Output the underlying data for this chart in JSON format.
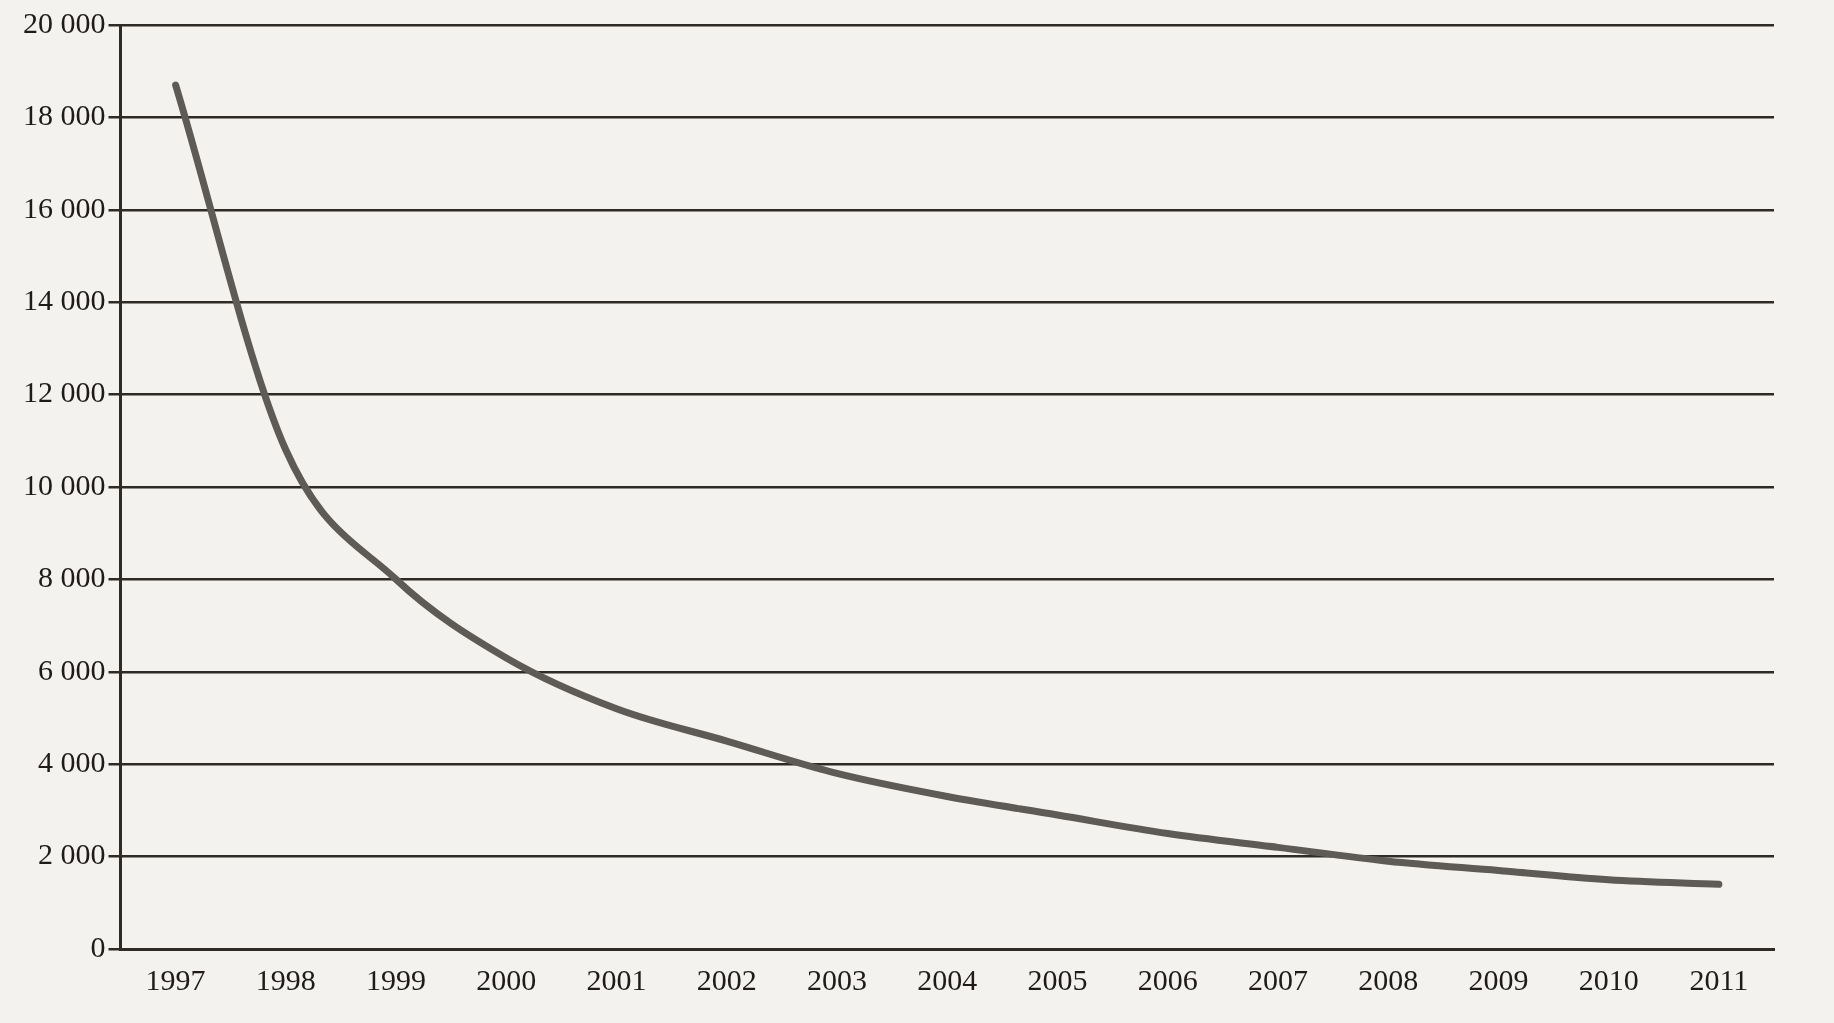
{
  "chart_data": {
    "type": "line",
    "categories": [
      "1997",
      "1998",
      "1999",
      "2000",
      "2001",
      "2002",
      "2003",
      "2004",
      "2005",
      "2006",
      "2007",
      "2008",
      "2009",
      "2010",
      "2011"
    ],
    "series": [
      {
        "color": "#5e5a55",
        "values": [
          18700,
          10800,
          8000,
          6300,
          5200,
          4500,
          3800,
          3300,
          2900,
          2500,
          2200,
          1900,
          1700,
          1500,
          1400
        ]
      }
    ],
    "ylim": [
      0,
      20000
    ],
    "yticks": [
      {
        "value": 0,
        "label": "0"
      },
      {
        "value": 2000,
        "label": "2 000"
      },
      {
        "value": 4000,
        "label": "4 000"
      },
      {
        "value": 6000,
        "label": "6 000"
      },
      {
        "value": 8000,
        "label": "8 000"
      },
      {
        "value": 10000,
        "label": "10 000"
      },
      {
        "value": 12000,
        "label": "12 000"
      },
      {
        "value": 14000,
        "label": "14 000"
      },
      {
        "value": 16000,
        "label": "16 000"
      },
      {
        "value": 18000,
        "label": "18 000"
      },
      {
        "value": 20000,
        "label": "20 000"
      }
    ],
    "grid": "y",
    "marker": "none",
    "line_style": "solid",
    "legend": false
  }
}
